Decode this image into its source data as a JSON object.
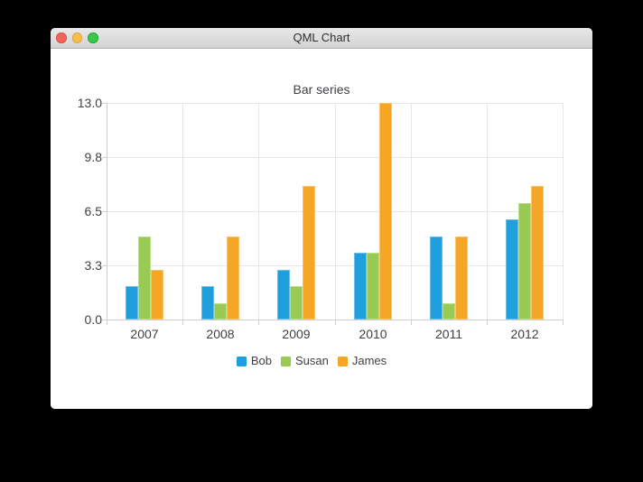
{
  "window": {
    "title": "QML Chart"
  },
  "colors": {
    "traffic_close": "#f2635c",
    "traffic_close_border": "#dd4f45",
    "traffic_minimize": "#f6bd4f",
    "traffic_minimize_border": "#dfa63b",
    "traffic_zoom": "#39c949",
    "traffic_zoom_border": "#24a839",
    "label": "#404044",
    "grid": "#e7e7e7",
    "axis": "#cfcfd2",
    "background": "#ffffff"
  },
  "chart_data": {
    "type": "bar",
    "title": "Bar series",
    "categories": [
      "2007",
      "2008",
      "2009",
      "2010",
      "2011",
      "2012"
    ],
    "series": [
      {
        "name": "Bob",
        "color": "#209fdf",
        "border_color": "#6cbde8",
        "values": [
          2,
          2,
          3,
          4,
          5,
          6
        ]
      },
      {
        "name": "Susan",
        "color": "#99ca53",
        "border_color": "#bcdc8c",
        "values": [
          5,
          1,
          2,
          4,
          1,
          7
        ]
      },
      {
        "name": "James",
        "color": "#f6a625",
        "border_color": "#f9c36a",
        "values": [
          3,
          5,
          8,
          13,
          5,
          8
        ]
      }
    ],
    "y_tick_labels": [
      "0.0",
      "3.3",
      "6.5",
      "9.8",
      "13.0"
    ],
    "y_tick_values": [
      0,
      3.25,
      6.5,
      9.75,
      13
    ],
    "ylim": [
      0,
      13
    ],
    "xlabel": "",
    "ylabel": "",
    "grid": true,
    "legend_position": "bottom",
    "bar_group_width_ratio": 0.5
  }
}
